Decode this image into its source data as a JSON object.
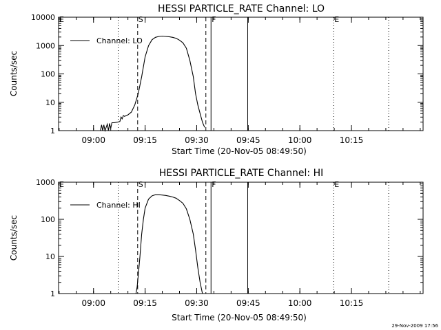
{
  "footer": {
    "timestamp": "29-Nov-2009 17:56"
  },
  "chart_data": [
    {
      "type": "line",
      "title": "HESSI PARTICLE_RATE Channel: LO",
      "xlabel": "Start Time (20-Nov-05 08:49:50)",
      "ylabel": "Counts/sec",
      "yscale": "log",
      "ylim": [
        1,
        10000
      ],
      "xlim_minutes_after_start": [
        0,
        106
      ],
      "x_ticks": [
        "09:00",
        "09:15",
        "09:30",
        "09:45",
        "10:00",
        "10:15"
      ],
      "y_ticks": [
        "1",
        "10",
        "100",
        "1000",
        "10000"
      ],
      "legend": {
        "label": "Channel: LO",
        "position": "top-left"
      },
      "markers": [
        {
          "label": "E",
          "time": "08:49:50",
          "style": "dotted"
        },
        {
          "label": "",
          "time": "09:07:10",
          "style": "dotted"
        },
        {
          "label": "S",
          "time": "09:12:50",
          "style": "dashed"
        },
        {
          "label": "",
          "time": "09:32:40",
          "style": "dashed"
        },
        {
          "label": "F",
          "time": "09:34:10",
          "style": "solid"
        },
        {
          "label": "",
          "time": "09:44:50",
          "style": "solid"
        },
        {
          "label": "E",
          "time": "10:09:50",
          "style": "dotted"
        },
        {
          "label": "",
          "time": "10:25:50",
          "style": "dotted"
        }
      ],
      "series": [
        {
          "name": "Channel: LO",
          "points": [
            [
              "09:02:00",
              1
            ],
            [
              "09:02:20",
              1.6
            ],
            [
              "09:02:40",
              1
            ],
            [
              "09:03:00",
              1.6
            ],
            [
              "09:03:20",
              1
            ],
            [
              "09:04:00",
              1.7
            ],
            [
              "09:04:20",
              1
            ],
            [
              "09:04:40",
              1.8
            ],
            [
              "09:05:00",
              1.2
            ],
            [
              "09:05:20",
              1.9
            ],
            [
              "09:06:00",
              1.9
            ],
            [
              "09:07:00",
              2
            ],
            [
              "09:07:40",
              2.1
            ],
            [
              "09:08:00",
              3
            ],
            [
              "09:08:20",
              2.6
            ],
            [
              "09:08:40",
              3.4
            ],
            [
              "09:09:00",
              3.2
            ],
            [
              "09:10:00",
              3.6
            ],
            [
              "09:11:00",
              4.5
            ],
            [
              "09:12:00",
              8
            ],
            [
              "09:13:00",
              20
            ],
            [
              "09:14:00",
              80
            ],
            [
              "09:15:00",
              400
            ],
            [
              "09:16:00",
              1000
            ],
            [
              "09:17:00",
              1600
            ],
            [
              "09:18:00",
              1950
            ],
            [
              "09:19:00",
              2100
            ],
            [
              "09:20:00",
              2150
            ],
            [
              "09:21:00",
              2100
            ],
            [
              "09:22:00",
              2050
            ],
            [
              "09:23:00",
              1950
            ],
            [
              "09:24:00",
              1800
            ],
            [
              "09:25:00",
              1550
            ],
            [
              "09:26:00",
              1250
            ],
            [
              "09:27:00",
              800
            ],
            [
              "09:28:00",
              300
            ],
            [
              "09:29:00",
              80
            ],
            [
              "09:29:40",
              20
            ],
            [
              "09:30:20",
              8
            ],
            [
              "09:31:00",
              4
            ],
            [
              "09:31:40",
              2
            ],
            [
              "09:32:00",
              1.6
            ],
            [
              "09:32:20",
              1.3
            ]
          ]
        }
      ]
    },
    {
      "type": "line",
      "title": "HESSI PARTICLE_RATE Channel: HI",
      "xlabel": "Start Time (20-Nov-05 08:49:50)",
      "ylabel": "Counts/sec",
      "yscale": "log",
      "ylim": [
        1,
        1000
      ],
      "xlim_minutes_after_start": [
        0,
        106
      ],
      "x_ticks": [
        "09:00",
        "09:15",
        "09:30",
        "09:45",
        "10:00",
        "10:15"
      ],
      "y_ticks": [
        "1",
        "10",
        "100",
        "1000"
      ],
      "legend": {
        "label": "Channel: HI",
        "position": "top-left"
      },
      "markers": [
        {
          "label": "E",
          "time": "08:49:50",
          "style": "dotted"
        },
        {
          "label": "",
          "time": "09:07:10",
          "style": "dotted"
        },
        {
          "label": "S",
          "time": "09:12:50",
          "style": "dashed"
        },
        {
          "label": "",
          "time": "09:32:40",
          "style": "dashed"
        },
        {
          "label": "F",
          "time": "09:34:10",
          "style": "solid"
        },
        {
          "label": "",
          "time": "09:44:50",
          "style": "solid"
        },
        {
          "label": "E",
          "time": "10:09:50",
          "style": "dotted"
        },
        {
          "label": "",
          "time": "10:25:50",
          "style": "dotted"
        }
      ],
      "series": [
        {
          "name": "Channel: HI",
          "points": [
            [
              "09:12:20",
              1
            ],
            [
              "09:12:40",
              1.5
            ],
            [
              "09:13:00",
              3
            ],
            [
              "09:13:30",
              10
            ],
            [
              "09:14:00",
              40
            ],
            [
              "09:14:30",
              100
            ],
            [
              "09:15:00",
              200
            ],
            [
              "09:16:00",
              350
            ],
            [
              "09:17:00",
              430
            ],
            [
              "09:18:00",
              460
            ],
            [
              "09:19:00",
              460
            ],
            [
              "09:20:00",
              450
            ],
            [
              "09:21:00",
              440
            ],
            [
              "09:22:00",
              420
            ],
            [
              "09:23:00",
              400
            ],
            [
              "09:24:00",
              370
            ],
            [
              "09:25:00",
              320
            ],
            [
              "09:26:00",
              270
            ],
            [
              "09:27:00",
              190
            ],
            [
              "09:28:00",
              100
            ],
            [
              "09:29:00",
              40
            ],
            [
              "09:29:40",
              15
            ],
            [
              "09:30:20",
              5
            ],
            [
              "09:31:00",
              2
            ],
            [
              "09:31:40",
              1
            ]
          ]
        }
      ]
    }
  ]
}
